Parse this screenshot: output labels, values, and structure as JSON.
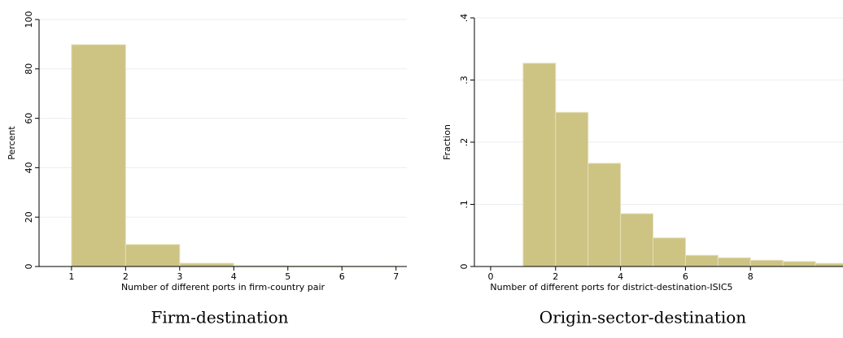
{
  "chart_data": [
    {
      "type": "histogram",
      "xlabel": "Number of different ports in firm-country pair",
      "ylabel": "Percent",
      "caption": "Firm-destination",
      "bins": [
        1,
        2,
        3,
        4,
        5,
        6,
        7
      ],
      "counts": [
        89.8,
        8.9,
        1.3,
        0.3,
        0.2,
        0.1
      ],
      "color": "#cdc383",
      "xlim": [
        0.4,
        7.2
      ],
      "xticks": [
        1,
        2,
        3,
        4,
        5,
        6,
        7
      ],
      "ylim": [
        0,
        100
      ],
      "yticks": [
        0,
        20,
        40,
        60,
        80,
        100
      ],
      "grid": true
    },
    {
      "type": "histogram",
      "xlabel": "Number of different ports for district-destination-ISIC5",
      "ylabel": "Fraction",
      "caption": "Origin-sector-destination",
      "bins": [
        1,
        2,
        3,
        4,
        5,
        6,
        7,
        8,
        9,
        10,
        11
      ],
      "counts": [
        0.327,
        0.248,
        0.166,
        0.085,
        0.046,
        0.018,
        0.014,
        0.01,
        0.008,
        0.005
      ],
      "color": "#cdc383",
      "xlim": [
        -0.5,
        10.85
      ],
      "xticks": [
        0,
        2,
        4,
        6,
        8
      ],
      "ylim": [
        0,
        0.4
      ],
      "yticks": [
        0,
        {
          "value": 0.1,
          "label": ".1"
        },
        {
          "value": 0.2,
          "label": ".2"
        },
        {
          "value": 0.3,
          "label": ".3"
        },
        {
          "value": 0.4,
          "label": ".4"
        }
      ],
      "grid": true
    }
  ]
}
